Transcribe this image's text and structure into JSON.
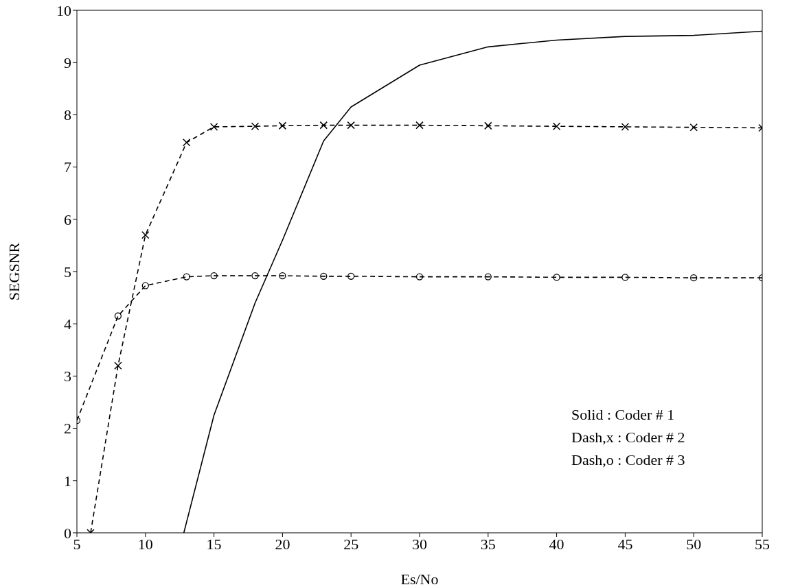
{
  "chart_data": {
    "type": "line",
    "xlabel": "Es/No",
    "ylabel": "SEGSNR",
    "xlim": [
      5,
      55
    ],
    "xticks": [
      5,
      10,
      15,
      20,
      25,
      30,
      35,
      40,
      45,
      50,
      55
    ],
    "ylim": [
      0,
      10
    ],
    "yticks": [
      0,
      1,
      2,
      3,
      4,
      5,
      6,
      7,
      8,
      9,
      10
    ],
    "grid": false,
    "legend": false,
    "annotations": [
      "Solid : Coder # 1",
      "Dash,x : Coder # 2",
      "Dash,o : Coder # 3"
    ],
    "series": [
      {
        "color": "#000000",
        "line_style": "solid",
        "marker": "none",
        "x": [
          12.8,
          15,
          18,
          20,
          23,
          25,
          30,
          35,
          40,
          45,
          50,
          55
        ],
        "values": [
          0,
          2.25,
          4.4,
          5.6,
          7.5,
          8.15,
          8.95,
          9.3,
          9.43,
          9.5,
          9.52,
          9.6
        ]
      },
      {
        "color": "#000000",
        "line_style": "dashed",
        "marker": "cross",
        "x": [
          6,
          8,
          10,
          13,
          15,
          18,
          20,
          23,
          25,
          30,
          35,
          40,
          45,
          50,
          55
        ],
        "values": [
          0,
          3.2,
          5.7,
          7.47,
          7.77,
          7.78,
          7.79,
          7.8,
          7.8,
          7.8,
          7.79,
          7.78,
          7.77,
          7.76,
          7.75
        ]
      },
      {
        "color": "#000000",
        "line_style": "dashed",
        "marker": "circle",
        "x": [
          5,
          8,
          10,
          13,
          15,
          18,
          20,
          23,
          25,
          30,
          35,
          40,
          45,
          50,
          55
        ],
        "values": [
          2.15,
          4.15,
          4.73,
          4.9,
          4.92,
          4.92,
          4.92,
          4.91,
          4.91,
          4.9,
          4.9,
          4.89,
          4.89,
          4.88,
          4.88
        ]
      }
    ]
  }
}
